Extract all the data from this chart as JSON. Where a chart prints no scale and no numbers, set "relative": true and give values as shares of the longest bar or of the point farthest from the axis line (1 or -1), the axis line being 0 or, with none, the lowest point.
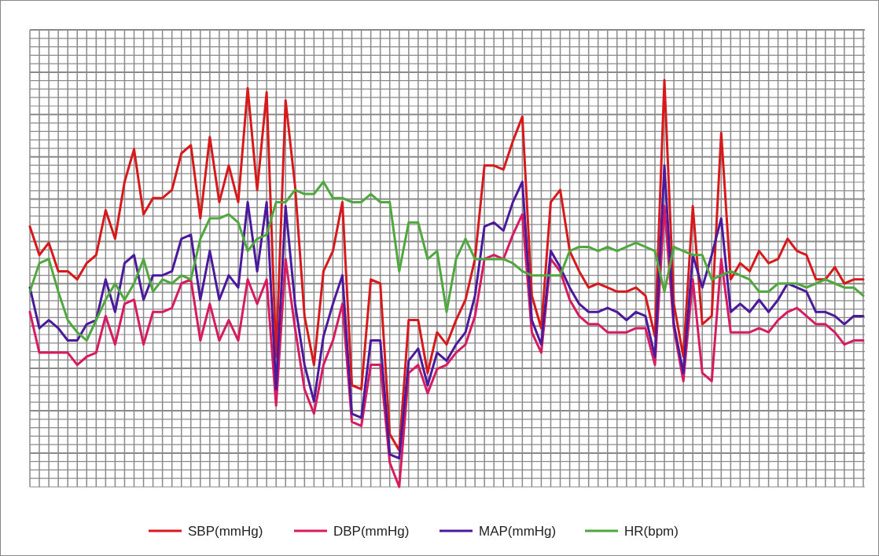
{
  "chart_data": {
    "type": "line",
    "relative": true,
    "grid": true,
    "legend": "bottom",
    "marker": "none",
    "line_style": "solid",
    "categories": [
      null,
      null,
      null,
      null,
      null,
      null,
      null,
      null,
      null,
      null,
      null,
      null,
      null,
      null,
      null,
      null,
      null,
      null,
      null,
      null,
      null,
      null,
      null,
      null,
      null,
      null,
      null,
      null,
      null,
      null,
      null,
      null,
      null,
      null,
      null,
      null,
      null,
      null,
      null,
      null,
      null,
      null,
      null,
      null,
      null,
      null,
      null,
      null,
      null,
      null,
      null,
      null,
      null,
      null,
      null,
      null,
      null,
      null,
      null,
      null,
      null,
      null,
      null,
      null,
      null,
      null,
      null,
      null,
      null,
      null,
      null,
      null,
      null,
      null,
      null,
      null,
      null,
      null,
      null,
      null,
      null,
      null,
      null,
      null,
      null,
      null,
      null,
      null,
      null
    ],
    "series": [
      {
        "name": "SBP(mmHg)",
        "color": "#d7191c",
        "values": [
          0.64,
          0.57,
          0.6,
          0.53,
          0.53,
          0.51,
          0.55,
          0.57,
          0.68,
          0.61,
          0.75,
          0.83,
          0.67,
          0.71,
          0.71,
          0.73,
          0.82,
          0.84,
          0.66,
          0.86,
          0.7,
          0.79,
          0.7,
          0.98,
          0.73,
          0.97,
          0.32,
          0.95,
          0.74,
          0.42,
          0.3,
          0.53,
          0.58,
          0.7,
          0.25,
          0.24,
          0.51,
          0.5,
          0.13,
          0.09,
          0.41,
          0.41,
          0.28,
          0.38,
          0.35,
          0.41,
          0.46,
          0.56,
          0.79,
          0.79,
          0.78,
          0.85,
          0.91,
          0.47,
          0.39,
          0.7,
          0.73,
          0.58,
          0.53,
          0.49,
          0.5,
          0.49,
          0.48,
          0.48,
          0.49,
          0.47,
          0.37,
          1,
          0.45,
          0.32,
          0.69,
          0.4,
          0.42,
          0.87,
          0.51,
          0.55,
          0.53,
          0.58,
          0.55,
          0.56,
          0.61,
          0.58,
          0.57,
          0.51,
          0.51,
          0.54,
          0.5,
          0.51,
          0.51
        ]
      },
      {
        "name": "DBP(mmHg)",
        "color": "#d81b60",
        "values": [
          0.43,
          0.33,
          0.33,
          0.33,
          0.33,
          0.3,
          0.32,
          0.33,
          0.42,
          0.35,
          0.45,
          0.46,
          0.35,
          0.43,
          0.43,
          0.44,
          0.5,
          0.51,
          0.36,
          0.45,
          0.36,
          0.41,
          0.36,
          0.51,
          0.45,
          0.51,
          0.2,
          0.56,
          0.39,
          0.24,
          0.18,
          0.3,
          0.36,
          0.45,
          0.16,
          0.15,
          0.3,
          0.3,
          0.06,
          0,
          0.28,
          0.3,
          0.23,
          0.29,
          0.3,
          0.33,
          0.35,
          0.42,
          0.56,
          0.57,
          0.56,
          0.62,
          0.67,
          0.38,
          0.33,
          0.56,
          0.53,
          0.46,
          0.42,
          0.4,
          0.4,
          0.38,
          0.38,
          0.38,
          0.39,
          0.39,
          0.3,
          0.69,
          0.39,
          0.26,
          0.51,
          0.28,
          0.26,
          0.56,
          0.38,
          0.38,
          0.38,
          0.39,
          0.38,
          0.41,
          0.43,
          0.44,
          0.42,
          0.4,
          0.4,
          0.38,
          0.35,
          0.36,
          0.36
        ]
      },
      {
        "name": "MAP(mmHg)",
        "color": "#4b1a9c",
        "values": [
          0.49,
          0.39,
          0.41,
          0.39,
          0.36,
          0.36,
          0.4,
          0.41,
          0.51,
          0.43,
          0.55,
          0.57,
          0.46,
          0.52,
          0.52,
          0.53,
          0.61,
          0.62,
          0.46,
          0.58,
          0.46,
          0.52,
          0.49,
          0.7,
          0.53,
          0.7,
          0.24,
          0.69,
          0.45,
          0.3,
          0.21,
          0.37,
          0.45,
          0.52,
          0.18,
          0.17,
          0.36,
          0.36,
          0.08,
          0.07,
          0.31,
          0.34,
          0.25,
          0.33,
          0.31,
          0.35,
          0.38,
          0.47,
          0.64,
          0.65,
          0.63,
          0.7,
          0.75,
          0.41,
          0.35,
          0.58,
          0.54,
          0.49,
          0.45,
          0.43,
          0.43,
          0.44,
          0.43,
          0.41,
          0.43,
          0.42,
          0.32,
          0.79,
          0.4,
          0.28,
          0.57,
          0.49,
          0.57,
          0.66,
          0.43,
          0.45,
          0.43,
          0.46,
          0.43,
          0.46,
          0.5,
          0.49,
          0.48,
          0.43,
          0.43,
          0.42,
          0.4,
          0.42,
          0.42
        ]
      },
      {
        "name": "HR(bpm)",
        "color": "#4fa83d",
        "values": [
          0.48,
          0.55,
          0.56,
          0.48,
          0.41,
          0.38,
          0.36,
          0.41,
          0.46,
          0.5,
          0.46,
          0.5,
          0.56,
          0.48,
          0.51,
          0.5,
          0.52,
          0.51,
          0.61,
          0.66,
          0.66,
          0.67,
          0.65,
          0.58,
          0.61,
          0.62,
          0.7,
          0.7,
          0.73,
          0.72,
          0.72,
          0.75,
          0.71,
          0.71,
          0.7,
          0.7,
          0.72,
          0.7,
          0.7,
          0.53,
          0.65,
          0.65,
          0.56,
          0.58,
          0.43,
          0.56,
          0.61,
          0.56,
          0.56,
          0.56,
          0.56,
          0.55,
          0.53,
          0.52,
          0.52,
          0.52,
          0.52,
          0.58,
          0.59,
          0.59,
          0.58,
          0.59,
          0.58,
          0.59,
          0.6,
          0.59,
          0.58,
          0.48,
          0.59,
          0.58,
          0.57,
          0.57,
          0.51,
          0.52,
          0.53,
          0.52,
          0.51,
          0.48,
          0.48,
          0.5,
          0.5,
          0.5,
          0.49,
          0.5,
          0.51,
          0.5,
          0.49,
          0.49,
          0.47
        ]
      }
    ]
  }
}
